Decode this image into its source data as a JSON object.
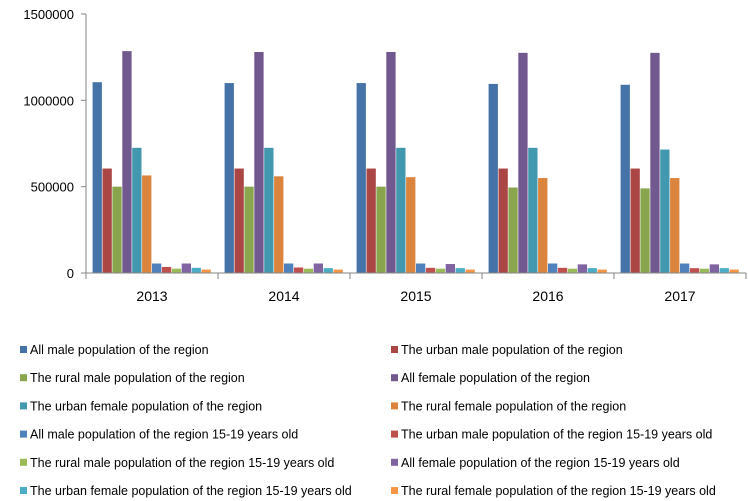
{
  "chart_data": {
    "type": "bar",
    "title": "",
    "xlabel": "",
    "ylabel": "",
    "ylim": [
      0,
      1500000
    ],
    "yticks": [
      "0",
      "500000",
      "1000000",
      "1500000"
    ],
    "grid": false,
    "legend_position": "bottom",
    "categories": [
      "2013",
      "2014",
      "2015",
      "2016",
      "2017"
    ],
    "series": [
      {
        "name": "All male population of the region",
        "color": "#4572A7",
        "values": [
          1105000,
          1100000,
          1100000,
          1095000,
          1090000
        ]
      },
      {
        "name": "The urban male population of the region",
        "color": "#AA4643",
        "values": [
          605000,
          605000,
          605000,
          605000,
          605000
        ]
      },
      {
        "name": "The rural male population of the region",
        "color": "#89A54E",
        "values": [
          500000,
          500000,
          500000,
          495000,
          490000
        ]
      },
      {
        "name": "All female population of the region",
        "color": "#71588F",
        "values": [
          1285000,
          1280000,
          1280000,
          1275000,
          1275000
        ]
      },
      {
        "name": "The urban female population of the region",
        "color": "#4198AF",
        "values": [
          725000,
          725000,
          725000,
          725000,
          715000
        ]
      },
      {
        "name": "The rural female population of the region",
        "color": "#DB843D",
        "values": [
          565000,
          560000,
          555000,
          550000,
          550000
        ]
      },
      {
        "name": "All male population of the region 15-19 years old",
        "color": "#4F81BD",
        "values": [
          55000,
          55000,
          55000,
          55000,
          55000
        ]
      },
      {
        "name": "The urban male population of the region 15-19 years old",
        "color": "#C0504D",
        "values": [
          35000,
          32000,
          30000,
          30000,
          28000
        ]
      },
      {
        "name": "The rural male population of the region 15-19 years old",
        "color": "#9BBB59",
        "values": [
          25000,
          25000,
          25000,
          25000,
          25000
        ]
      },
      {
        "name": "All female population of the region 15-19 years old",
        "color": "#8064A2",
        "values": [
          55000,
          55000,
          52000,
          50000,
          50000
        ]
      },
      {
        "name": "The urban female population of the region 15-19 years old",
        "color": "#4BACC6",
        "values": [
          30000,
          28000,
          28000,
          28000,
          28000
        ]
      },
      {
        "name": "The rural female population of the region 15-19 years old",
        "color": "#F79646",
        "values": [
          20000,
          20000,
          20000,
          20000,
          20000
        ]
      }
    ]
  }
}
